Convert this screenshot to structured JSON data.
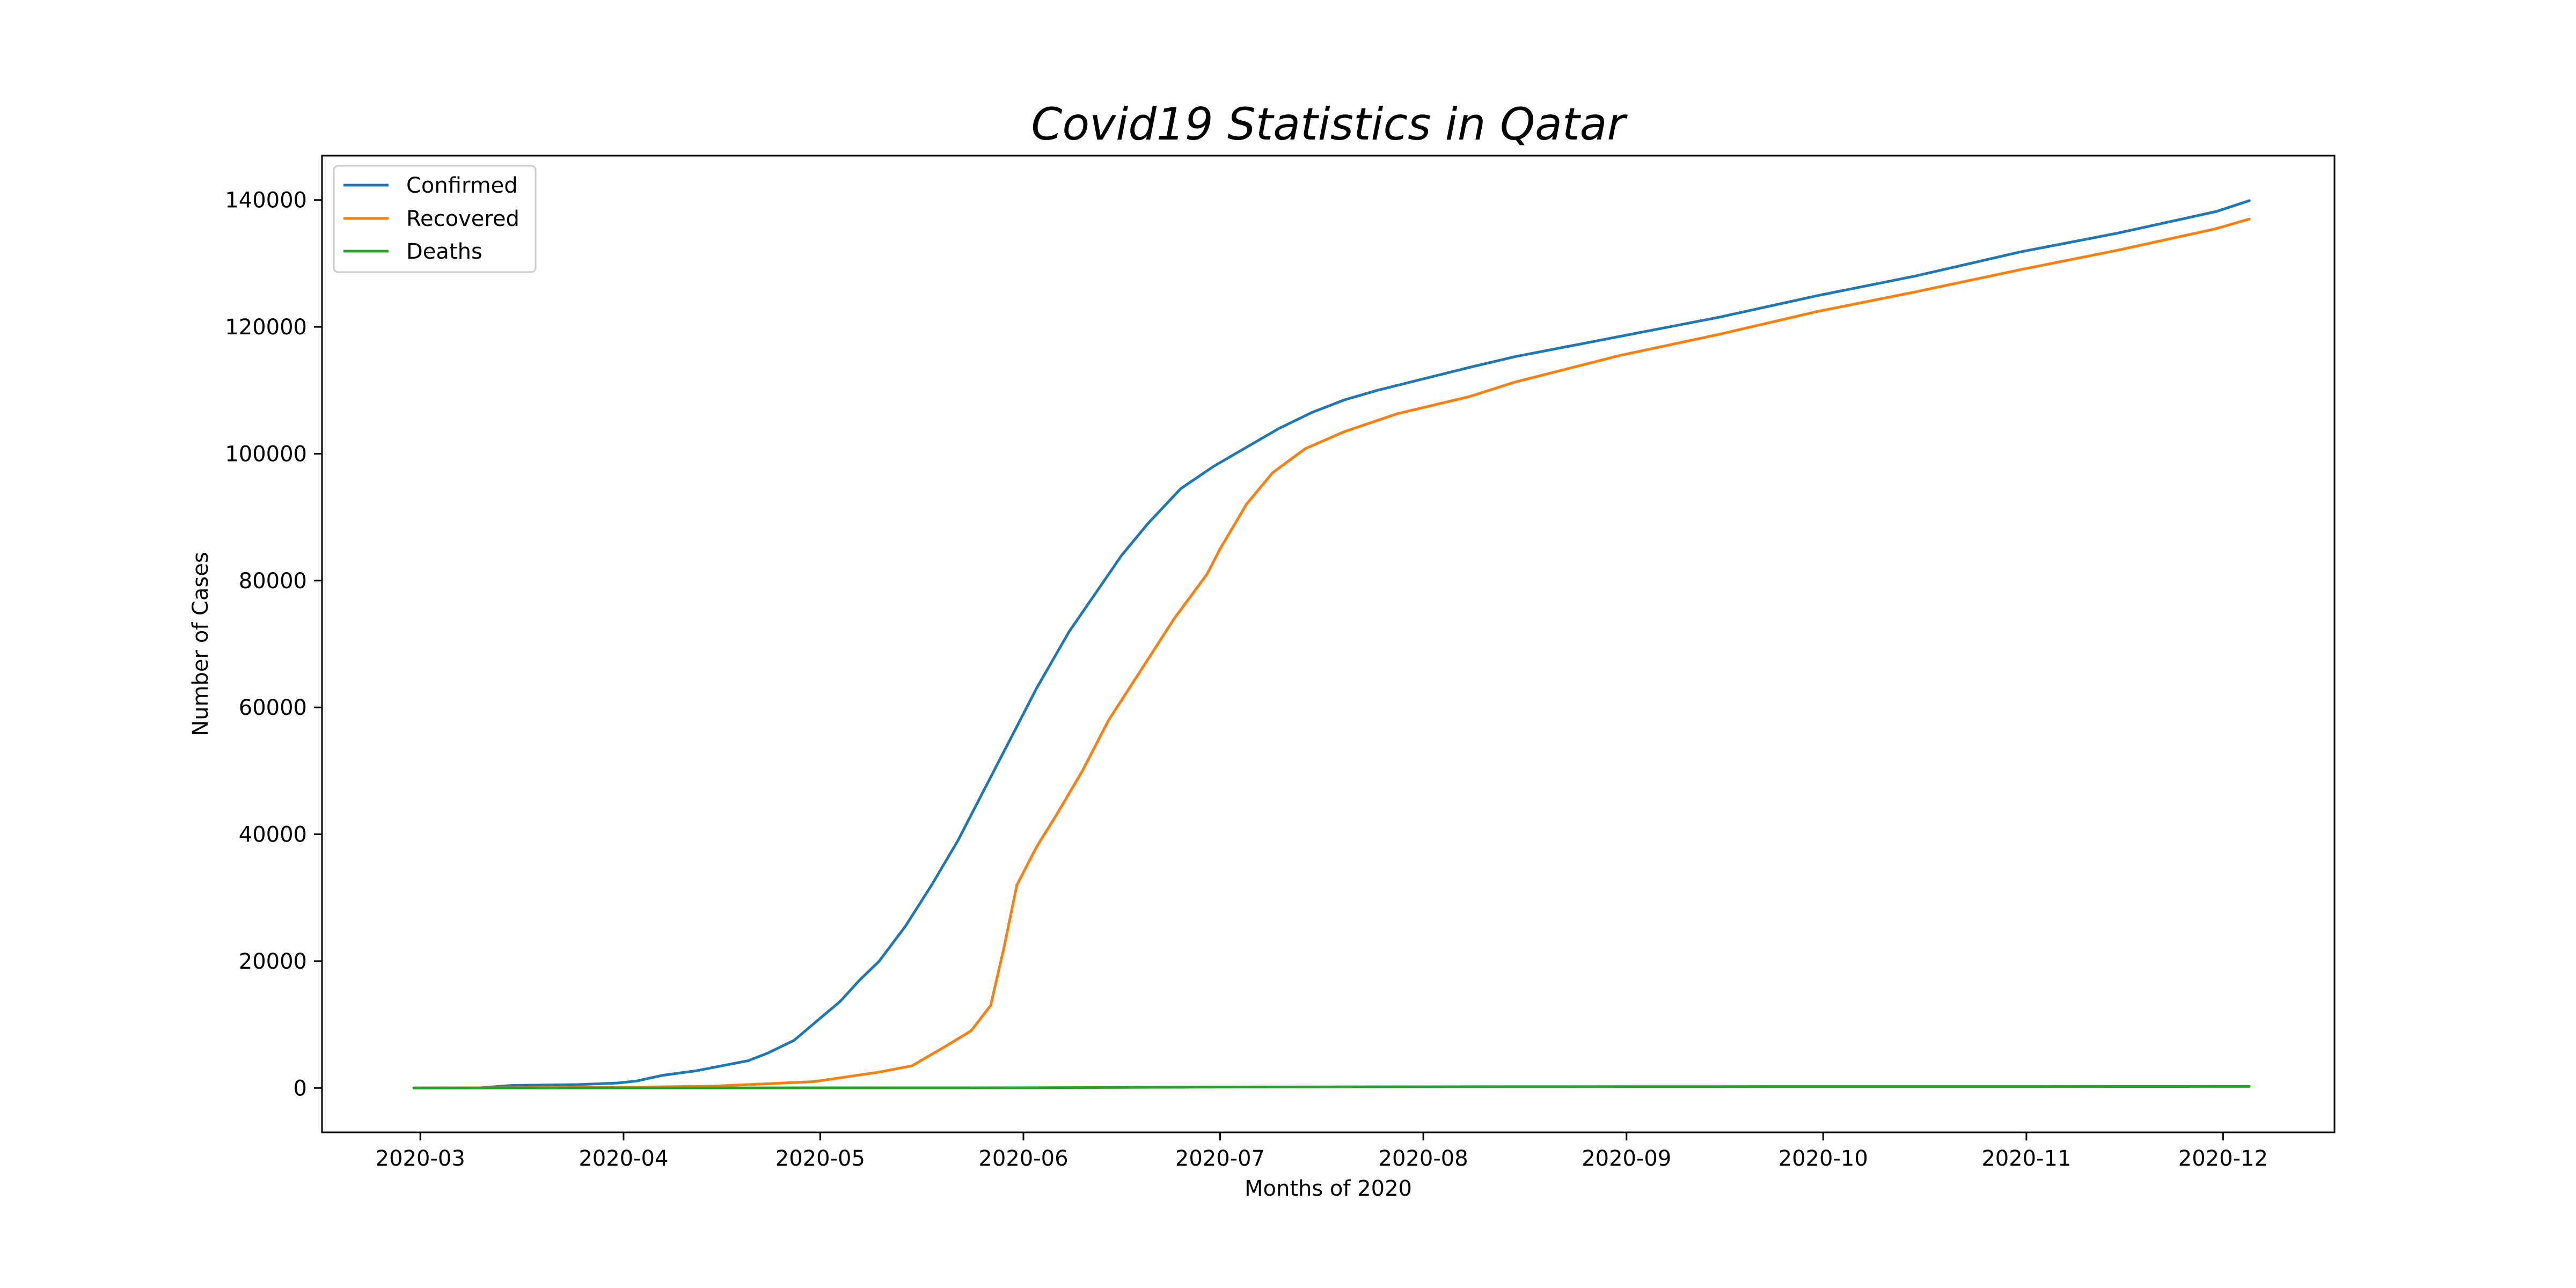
{
  "chart_data": {
    "type": "line",
    "title": "Covid19 Statistics in Qatar",
    "xlabel": "Months of 2020",
    "ylabel": "Number of Cases",
    "x_type": "date",
    "xlim": [
      "2020-02-15",
      "2020-12-18"
    ],
    "ylim": [
      -7000,
      147000
    ],
    "x_ticks": [
      "2020-03",
      "2020-04",
      "2020-05",
      "2020-06",
      "2020-07",
      "2020-08",
      "2020-09",
      "2020-10",
      "2020-11",
      "2020-12"
    ],
    "y_ticks": [
      0,
      20000,
      40000,
      60000,
      80000,
      100000,
      120000,
      140000
    ],
    "grid": false,
    "legend": "top-left",
    "series": [
      {
        "name": "Confirmed",
        "color": "#1f77b4",
        "points": [
          [
            "2020-02-29",
            0
          ],
          [
            "2020-03-10",
            15
          ],
          [
            "2020-03-15",
            400
          ],
          [
            "2020-03-20",
            460
          ],
          [
            "2020-03-25",
            530
          ],
          [
            "2020-03-31",
            780
          ],
          [
            "2020-04-03",
            1100
          ],
          [
            "2020-04-07",
            2000
          ],
          [
            "2020-04-12",
            2700
          ],
          [
            "2020-04-15",
            3300
          ],
          [
            "2020-04-20",
            4300
          ],
          [
            "2020-04-23",
            5500
          ],
          [
            "2020-04-27",
            7500
          ],
          [
            "2020-05-01",
            11000
          ],
          [
            "2020-05-04",
            13600
          ],
          [
            "2020-05-07",
            17000
          ],
          [
            "2020-05-10",
            20000
          ],
          [
            "2020-05-14",
            25500
          ],
          [
            "2020-05-18",
            32000
          ],
          [
            "2020-05-22",
            39000
          ],
          [
            "2020-05-26",
            47000
          ],
          [
            "2020-05-30",
            55000
          ],
          [
            "2020-06-03",
            63000
          ],
          [
            "2020-06-08",
            72000
          ],
          [
            "2020-06-12",
            78000
          ],
          [
            "2020-06-16",
            84000
          ],
          [
            "2020-06-20",
            89000
          ],
          [
            "2020-06-25",
            94500
          ],
          [
            "2020-06-30",
            98000
          ],
          [
            "2020-07-05",
            101000
          ],
          [
            "2020-07-10",
            104000
          ],
          [
            "2020-07-15",
            106500
          ],
          [
            "2020-07-20",
            108500
          ],
          [
            "2020-07-25",
            110000
          ],
          [
            "2020-08-01",
            111800
          ],
          [
            "2020-08-08",
            113600
          ],
          [
            "2020-08-15",
            115300
          ],
          [
            "2020-08-31",
            118500
          ],
          [
            "2020-09-15",
            121500
          ],
          [
            "2020-09-30",
            124900
          ],
          [
            "2020-10-15",
            128000
          ],
          [
            "2020-10-31",
            131800
          ],
          [
            "2020-11-15",
            134800
          ],
          [
            "2020-11-30",
            138200
          ],
          [
            "2020-12-05",
            139900
          ]
        ]
      },
      {
        "name": "Recovered",
        "color": "#ff7f0e",
        "points": [
          [
            "2020-02-29",
            0
          ],
          [
            "2020-03-31",
            80
          ],
          [
            "2020-04-15",
            300
          ],
          [
            "2020-04-30",
            1000
          ],
          [
            "2020-05-10",
            2500
          ],
          [
            "2020-05-15",
            3500
          ],
          [
            "2020-05-20",
            6500
          ],
          [
            "2020-05-24",
            9000
          ],
          [
            "2020-05-27",
            13000
          ],
          [
            "2020-05-29",
            22000
          ],
          [
            "2020-05-31",
            32000
          ],
          [
            "2020-06-03",
            38000
          ],
          [
            "2020-06-06",
            43000
          ],
          [
            "2020-06-10",
            50000
          ],
          [
            "2020-06-14",
            58000
          ],
          [
            "2020-06-19",
            66000
          ],
          [
            "2020-06-24",
            74000
          ],
          [
            "2020-06-29",
            81000
          ],
          [
            "2020-07-01",
            85000
          ],
          [
            "2020-07-05",
            92000
          ],
          [
            "2020-07-09",
            97000
          ],
          [
            "2020-07-14",
            100800
          ],
          [
            "2020-07-20",
            103500
          ],
          [
            "2020-07-28",
            106300
          ],
          [
            "2020-08-08",
            109000
          ],
          [
            "2020-08-15",
            111300
          ],
          [
            "2020-08-31",
            115500
          ],
          [
            "2020-09-15",
            118800
          ],
          [
            "2020-09-30",
            122400
          ],
          [
            "2020-10-15",
            125500
          ],
          [
            "2020-10-31",
            129000
          ],
          [
            "2020-11-15",
            132100
          ],
          [
            "2020-11-30",
            135500
          ],
          [
            "2020-12-05",
            137000
          ]
        ]
      },
      {
        "name": "Deaths",
        "color": "#2ca02c",
        "points": [
          [
            "2020-02-29",
            0
          ],
          [
            "2020-05-31",
            35
          ],
          [
            "2020-07-05",
            150
          ],
          [
            "2020-08-01",
            190
          ],
          [
            "2020-09-15",
            215
          ],
          [
            "2020-10-31",
            230
          ],
          [
            "2020-12-05",
            240
          ]
        ]
      }
    ]
  }
}
